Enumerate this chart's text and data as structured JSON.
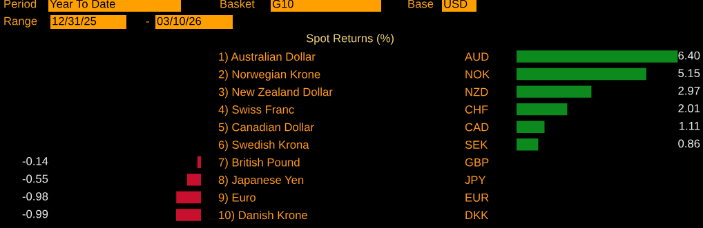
{
  "chart_data": [
    {
      "type": "bar",
      "orientation": "horizontal",
      "categories": [
        "1) Australian Dollar",
        "2) Norwegian Krone",
        "3) New Zealand Dollar",
        "4) Swiss Franc",
        "5) Canadian Dollar",
        "6) Swedish Krona",
        "7) British Pound",
        "8) Japanese Yen",
        "9) Euro",
        "10) Danish Krone"
      ],
      "values": [
        null,
        null,
        null,
        null,
        null,
        null,
        -0.14,
        -0.55,
        -0.98,
        -0.99
      ],
      "value_labels": [
        null,
        null,
        null,
        null,
        null,
        null,
        "-0.14",
        "-0.55",
        "-0.98",
        "-0.99"
      ],
      "color": "#c8102e",
      "title": "Spot Returns (%)",
      "annotations": [
        "Period",
        "Year To Date",
        "Basket",
        "G10",
        "Base",
        "USD",
        "Range",
        "12/31/25",
        "-",
        "03/10/26"
      ]
    },
    {
      "type": "bar",
      "orientation": "horizontal",
      "categories": [
        "AUD",
        "NOK",
        "NZD",
        "CHF",
        "CAD",
        "SEK",
        "GBP",
        "JPY",
        "EUR",
        "DKK"
      ],
      "values": [
        6.4,
        5.15,
        2.97,
        2.01,
        1.11,
        0.86,
        null,
        null,
        null,
        null
      ],
      "value_labels": [
        "6.40",
        "5.15",
        "2.97",
        "2.01",
        "1.11",
        "0.86",
        null,
        null,
        null,
        null
      ],
      "color": "#0c8a1e"
    }
  ]
}
